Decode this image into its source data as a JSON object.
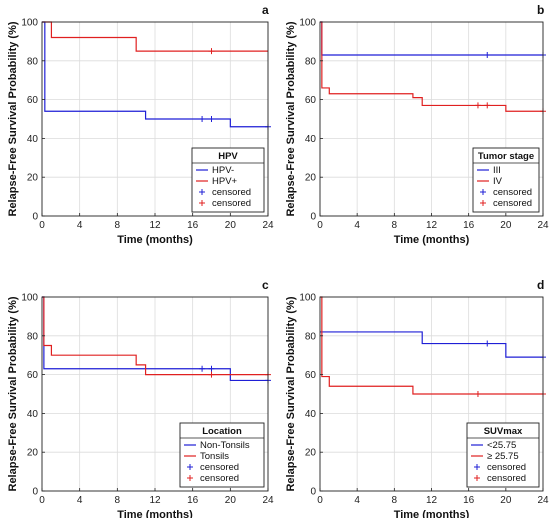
{
  "colors": {
    "blue": "#1f1fd6",
    "red": "#e02020",
    "grid": "#dcdcdc"
  },
  "chart_data": [
    {
      "type": "line",
      "panel": "a",
      "xlabel": "Time (months)",
      "ylabel": "Relapse-Free Survival Probability (%)",
      "xlim": [
        0,
        24
      ],
      "ylim": [
        0,
        100
      ],
      "xticks": [
        "0",
        "4",
        "8",
        "12",
        "16",
        "20",
        "24"
      ],
      "yticks": [
        "0",
        "20",
        "40",
        "60",
        "80",
        "100"
      ],
      "grid": true,
      "legend": {
        "title": "HPV",
        "position": "bottom-right",
        "entries": [
          "HPV-",
          "HPV+",
          "censored",
          "censored"
        ]
      },
      "series": [
        {
          "name": "HPV-",
          "color": "blue",
          "steps": [
            [
              0,
              100
            ],
            [
              0.3,
              54
            ],
            [
              11,
              50
            ],
            [
              20,
              46
            ],
            [
              24,
              46
            ]
          ],
          "censored": [
            [
              17,
              50
            ],
            [
              18,
              50
            ],
            [
              24,
              46
            ]
          ]
        },
        {
          "name": "HPV+",
          "color": "red",
          "steps": [
            [
              0,
              100
            ],
            [
              1,
              92
            ],
            [
              10,
              85
            ],
            [
              24,
              85
            ]
          ],
          "censored": [
            [
              18,
              85
            ]
          ]
        }
      ]
    },
    {
      "type": "line",
      "panel": "b",
      "xlabel": "Time (months)",
      "ylabel": "Relapse-Free Survival Probability (%)",
      "xlim": [
        0,
        24
      ],
      "ylim": [
        0,
        100
      ],
      "xticks": [
        "0",
        "4",
        "8",
        "12",
        "16",
        "20",
        "24"
      ],
      "yticks": [
        "0",
        "20",
        "40",
        "60",
        "80",
        "100"
      ],
      "grid": true,
      "legend": {
        "title": "Tumor stage",
        "position": "bottom-right",
        "entries": [
          "III",
          "IV",
          "censored",
          "censored"
        ]
      },
      "series": [
        {
          "name": "III",
          "color": "blue",
          "steps": [
            [
              0,
              100
            ],
            [
              0.2,
              83
            ],
            [
              24,
              83
            ]
          ],
          "censored": [
            [
              18,
              83
            ],
            [
              24,
              83
            ]
          ]
        },
        {
          "name": "IV",
          "color": "red",
          "steps": [
            [
              0,
              100
            ],
            [
              0.2,
              66
            ],
            [
              1,
              63
            ],
            [
              10,
              61
            ],
            [
              11,
              57
            ],
            [
              20,
              54
            ],
            [
              24,
              54
            ]
          ],
          "censored": [
            [
              17,
              57
            ],
            [
              18,
              57
            ],
            [
              24,
              54
            ]
          ]
        }
      ]
    },
    {
      "type": "line",
      "panel": "c",
      "xlabel": "Time (months)",
      "ylabel": "Relapse-Free Survival Probability (%)",
      "xlim": [
        0,
        24
      ],
      "ylim": [
        0,
        100
      ],
      "xticks": [
        "0",
        "4",
        "8",
        "12",
        "16",
        "20",
        "24"
      ],
      "yticks": [
        "0",
        "20",
        "40",
        "60",
        "80",
        "100"
      ],
      "grid": true,
      "legend": {
        "title": "Location",
        "position": "bottom-right",
        "entries": [
          "Non-Tonsils",
          "Tonsils",
          "censored",
          "censored"
        ]
      },
      "series": [
        {
          "name": "Non-Tonsils",
          "color": "blue",
          "steps": [
            [
              0,
              100
            ],
            [
              0.2,
              63
            ],
            [
              20,
              57
            ],
            [
              24,
              57
            ]
          ],
          "censored": [
            [
              17,
              63
            ],
            [
              18,
              63
            ],
            [
              24,
              57
            ]
          ]
        },
        {
          "name": "Tonsils",
          "color": "red",
          "steps": [
            [
              0,
              100
            ],
            [
              0.2,
              75
            ],
            [
              1,
              70
            ],
            [
              10,
              65
            ],
            [
              11,
              60
            ],
            [
              24,
              60
            ]
          ],
          "censored": [
            [
              18,
              60
            ],
            [
              24,
              60
            ]
          ]
        }
      ]
    },
    {
      "type": "line",
      "panel": "d",
      "xlabel": "Time (months)",
      "ylabel": "Relapse-Free Survival Probability (%)",
      "xlim": [
        0,
        24
      ],
      "ylim": [
        0,
        100
      ],
      "xticks": [
        "0",
        "4",
        "8",
        "12",
        "16",
        "20",
        "24"
      ],
      "yticks": [
        "0",
        "20",
        "40",
        "60",
        "80",
        "100"
      ],
      "grid": true,
      "legend": {
        "title": "SUVmax",
        "position": "bottom-right",
        "entries": [
          "<25.75",
          "≥ 25.75",
          "censored",
          "censored"
        ]
      },
      "series": [
        {
          "name": "<25.75",
          "color": "blue",
          "steps": [
            [
              0,
              82
            ],
            [
              11,
              76
            ],
            [
              20,
              69
            ],
            [
              24,
              69
            ]
          ],
          "censored": [
            [
              18,
              76
            ],
            [
              24,
              69
            ]
          ]
        },
        {
          "name": "≥ 25.75",
          "color": "red",
          "steps": [
            [
              0,
              100
            ],
            [
              0.2,
              59
            ],
            [
              1,
              54
            ],
            [
              10,
              50
            ],
            [
              24,
              50
            ]
          ],
          "censored": [
            [
              17,
              50
            ],
            [
              24,
              50
            ]
          ]
        }
      ]
    }
  ]
}
